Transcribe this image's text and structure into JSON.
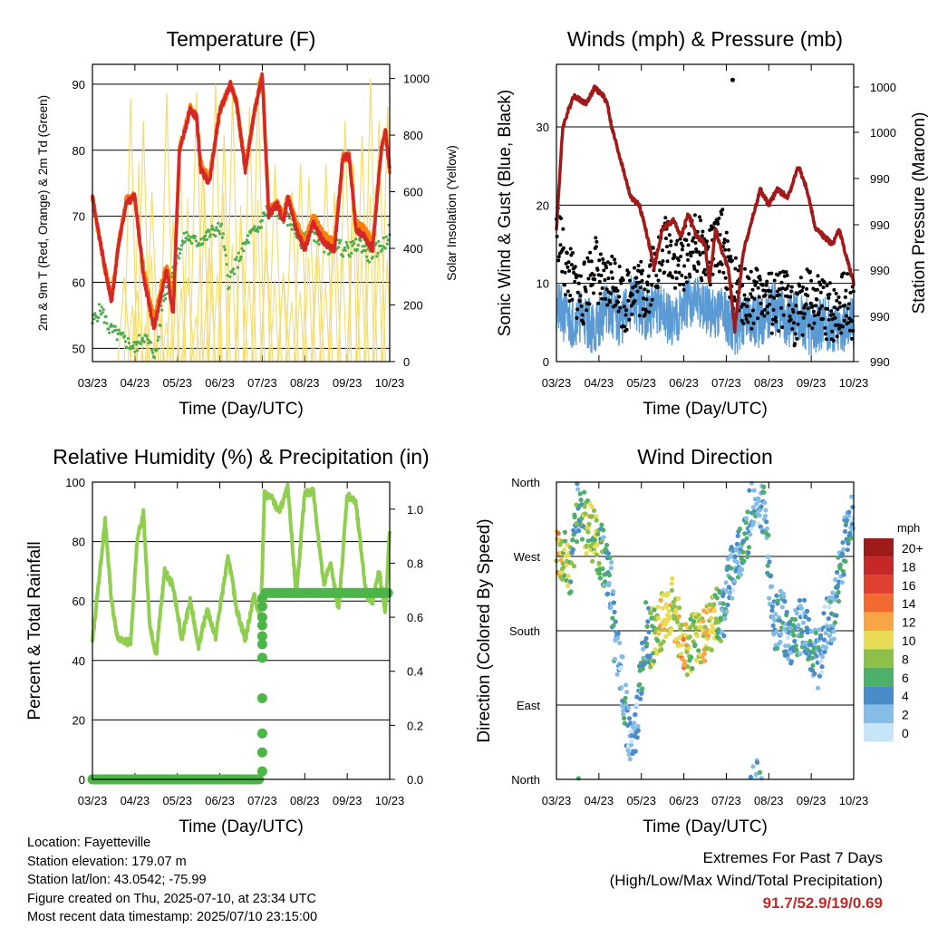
{
  "info": {
    "location": "Location: Fayetteville",
    "elevation": "Station elevation: 179.07 m",
    "latlon": "Station lat/lon: 43.0542; -75.99",
    "created": "Figure created on Thu, 2025-07-10, at 23:34 UTC",
    "recent": "Most recent data timestamp: 2025/07/10 23:15:00"
  },
  "extremes": {
    "title": "Extremes For Past 7 Days",
    "subtitle": "(High/Low/Max Wind/Total Precipitation)",
    "values": "91.7/52.9/19/0.69",
    "value_color": "#c62828"
  },
  "chart_data": [
    {
      "type": "line",
      "title": "Temperature (F)",
      "xlabel": "Time (Day/UTC)",
      "ylabel": "2m & 9m T (Red, Orange) & 2m Td (Green)",
      "y2label": "Solar Insolation (Yellow)",
      "x_ticks": [
        "03/23",
        "04/23",
        "05/23",
        "06/23",
        "07/23",
        "08/23",
        "09/23",
        "10/23"
      ],
      "ylim": [
        48,
        93
      ],
      "yticks": [
        50,
        60,
        70,
        80,
        90
      ],
      "y2lim": [
        0,
        1050
      ],
      "y2ticks": [
        0,
        200,
        400,
        600,
        800,
        1000
      ],
      "colors": {
        "t2m": "#d62728",
        "t9m": "#ff7f0e",
        "td": "#4cae4c",
        "solar": "#f5dc6e"
      },
      "series": [
        {
          "key": "t9m",
          "x": [
            0,
            0.1,
            0.3,
            0.45,
            0.62,
            0.8,
            1.0,
            1.2,
            1.45,
            1.75,
            1.9,
            2.05,
            2.3,
            2.45,
            2.55,
            2.75,
            3.0,
            3.25,
            3.4,
            3.6,
            3.82,
            4.0,
            4.15,
            4.35,
            4.5,
            4.6,
            4.8,
            5.0,
            5.2,
            5.45,
            5.7,
            5.9,
            6.05,
            6.2,
            6.4,
            6.6,
            6.8,
            6.9,
            7.0
          ],
          "values": [
            73,
            69,
            62,
            57.5,
            66,
            72.5,
            73,
            62,
            54,
            63,
            56,
            80,
            86.5,
            85,
            78,
            75.5,
            86,
            90,
            87,
            77,
            86,
            91.5,
            71,
            72,
            70,
            73,
            69,
            66,
            70,
            67,
            66,
            79,
            79,
            69,
            68,
            66,
            80,
            83,
            77
          ]
        },
        {
          "key": "t2m",
          "x": [
            0,
            0.1,
            0.3,
            0.45,
            0.62,
            0.8,
            1.0,
            1.2,
            1.45,
            1.75,
            1.9,
            2.05,
            2.3,
            2.45,
            2.55,
            2.75,
            3.0,
            3.25,
            3.4,
            3.6,
            3.82,
            4.0,
            4.15,
            4.35,
            4.5,
            4.6,
            4.8,
            5.0,
            5.2,
            5.45,
            5.7,
            5.9,
            6.05,
            6.2,
            6.4,
            6.6,
            6.8,
            6.9,
            7.0
          ],
          "values": [
            73,
            69,
            62,
            57,
            66,
            72,
            73,
            61,
            53,
            62,
            55,
            80,
            86,
            85,
            77,
            75,
            86,
            90,
            87,
            77,
            86,
            91.5,
            70,
            72,
            69,
            73,
            68,
            65,
            69,
            66,
            65,
            79,
            79,
            68,
            67,
            65,
            80,
            83,
            77
          ]
        },
        {
          "key": "td",
          "x": [
            0,
            0.2,
            0.4,
            0.6,
            0.8,
            1.0,
            1.2,
            1.4,
            1.5,
            1.65,
            1.8,
            2.0,
            2.2,
            2.45,
            2.7,
            2.9,
            3.05,
            3.2,
            3.4,
            3.55,
            3.7,
            3.9,
            4.1,
            4.3,
            4.5,
            4.7,
            4.9,
            5.1,
            5.3,
            5.5,
            5.7,
            5.9,
            6.1,
            6.3,
            6.5,
            6.7,
            6.9,
            7.0
          ],
          "values": [
            54,
            56,
            53,
            52,
            51,
            50,
            52,
            50,
            49,
            57,
            60,
            64,
            67,
            66,
            67,
            68,
            68,
            60,
            63,
            65,
            67,
            68,
            71,
            71,
            70,
            69,
            66,
            68,
            67,
            65,
            66,
            65,
            65,
            66,
            64,
            65,
            66,
            68
          ]
        },
        {
          "key": "solar",
          "x": [
            0.75,
            0.9,
            1.05,
            1.2,
            1.4,
            1.55,
            1.75,
            1.9,
            2.05,
            2.25,
            2.45,
            2.6,
            2.75,
            2.9,
            3.1,
            3.3,
            3.5,
            3.7,
            3.9,
            4.1,
            4.3,
            4.5,
            4.7,
            4.9,
            5.1,
            5.3,
            5.5,
            5.7,
            5.95,
            6.15,
            6.35,
            6.55,
            6.75,
            6.95
          ],
          "values": [
            300,
            930,
            250,
            850,
            600,
            200,
            950,
            500,
            800,
            300,
            950,
            700,
            400,
            980,
            800,
            950,
            500,
            900,
            1000,
            400,
            700,
            300,
            600,
            700,
            650,
            450,
            700,
            600,
            850,
            700,
            800,
            1000,
            850,
            900
          ]
        }
      ]
    },
    {
      "type": "line",
      "title": "Winds (mph) & Pressure (mb)",
      "xlabel": "Time (Day/UTC)",
      "ylabel": "Sonic Wind & Gust (Blue, Black)",
      "y2label": "Station Pressure (Maroon)",
      "x_ticks": [
        "03/23",
        "04/23",
        "05/23",
        "06/23",
        "07/23",
        "08/23",
        "09/23",
        "10/23"
      ],
      "ylim": [
        0,
        38
      ],
      "yticks": [
        0,
        10,
        20,
        30
      ],
      "y2ticks": [
        "990",
        "990",
        "990",
        "990",
        "990",
        "1000",
        "1000",
        "1000"
      ],
      "colors": {
        "wind": "#5b9bd5",
        "gust": "#000000",
        "pressure": "#a01a1a"
      },
      "series": [
        {
          "key": "pressure",
          "x": [
            0,
            0.15,
            0.4,
            0.7,
            0.9,
            1.1,
            1.2,
            1.3,
            1.45,
            1.6,
            1.75,
            1.95,
            2.1,
            2.3,
            2.5,
            2.75,
            2.95,
            3.1,
            3.3,
            3.5,
            3.6,
            3.75,
            3.9,
            4.05,
            4.2,
            4.4,
            4.6,
            4.8,
            5.0,
            5.2,
            5.45,
            5.7,
            5.9,
            6.1,
            6.3,
            6.5,
            6.65,
            6.8,
            7.0
          ],
          "values": [
            17,
            30,
            34,
            33,
            35,
            34,
            33,
            30,
            27,
            24,
            21,
            20,
            17,
            12,
            17,
            18,
            16,
            19,
            16,
            15,
            10,
            17,
            14,
            12,
            4,
            14,
            18,
            22,
            20,
            22,
            21,
            25,
            22,
            17,
            16,
            15,
            17,
            14,
            10
          ]
        },
        {
          "key": "wind",
          "x": [
            0,
            0.3,
            0.6,
            0.9,
            1.2,
            1.5,
            1.8,
            2.1,
            2.4,
            2.7,
            3.0,
            3.3,
            3.6,
            3.9,
            4.2,
            4.5,
            4.8,
            5.1,
            5.4,
            5.7,
            6.0,
            6.3,
            6.6,
            6.9
          ],
          "values": [
            7,
            5,
            6,
            4,
            7,
            5,
            8,
            6,
            7,
            5,
            7,
            8,
            6,
            7,
            4,
            6,
            5,
            7,
            5,
            6,
            4,
            5,
            4,
            5
          ]
        },
        {
          "key": "gust",
          "x": [
            0,
            0.2,
            0.4,
            0.6,
            0.9,
            1.1,
            1.4,
            1.6,
            1.8,
            2.1,
            2.3,
            2.6,
            2.9,
            3.1,
            3.3,
            3.6,
            3.9,
            4.1,
            4.3,
            4.6,
            4.9,
            5.1,
            5.4,
            5.6,
            5.9,
            6.2,
            6.5,
            6.8,
            7.0
          ],
          "values": [
            18,
            12,
            10,
            8,
            13,
            9,
            11,
            7,
            10,
            9,
            12,
            15,
            12,
            14,
            15,
            13,
            16,
            10,
            9,
            8,
            9,
            7,
            8,
            6,
            8,
            7,
            6,
            8,
            6
          ]
        }
      ]
    },
    {
      "type": "line",
      "title": "Relative Humidity (%) & Precipitation (in)",
      "xlabel": "Time (Day/UTC)",
      "ylabel": "Percent & Total Rainfall",
      "x_ticks": [
        "03/23",
        "04/23",
        "05/23",
        "06/23",
        "07/23",
        "08/23",
        "09/23",
        "10/23"
      ],
      "ylim": [
        0,
        100
      ],
      "yticks": [
        0,
        20,
        40,
        60,
        80,
        100
      ],
      "y2lim": [
        0,
        1.1
      ],
      "y2ticks": [
        "0.0",
        "0.2",
        "0.4",
        "0.6",
        "0.8",
        "1.0"
      ],
      "colors": {
        "rh": "#8fce4f",
        "precip": "#4cb548"
      },
      "series": [
        {
          "key": "rh",
          "x": [
            0,
            0.1,
            0.3,
            0.45,
            0.6,
            0.9,
            1.05,
            1.2,
            1.35,
            1.5,
            1.7,
            1.9,
            2.1,
            2.3,
            2.5,
            2.7,
            2.9,
            3.05,
            3.2,
            3.4,
            3.6,
            3.8,
            3.95,
            4.0,
            4.05,
            4.2,
            4.4,
            4.6,
            4.8,
            5.0,
            5.2,
            5.45,
            5.6,
            5.8,
            6.0,
            6.2,
            6.45,
            6.6,
            6.75,
            6.9,
            7.0
          ],
          "values": [
            46,
            60,
            87,
            60,
            47,
            46,
            80,
            90,
            52,
            42,
            70,
            65,
            47,
            60,
            45,
            57,
            48,
            62,
            75,
            57,
            47,
            62,
            55,
            70,
            96,
            95,
            90,
            98,
            62,
            96,
            97,
            65,
            73,
            57,
            96,
            93,
            62,
            60,
            70,
            56,
            84
          ]
        },
        {
          "key": "precip",
          "x": [
            0,
            3.95,
            4.0,
            4.05,
            7.0
          ],
          "values": [
            0,
            0,
            0.3,
            0.69,
            0.69
          ]
        }
      ]
    },
    {
      "type": "scatter",
      "title": "Wind Direction",
      "xlabel": "Time (Day/UTC)",
      "ylabel": "Direction (Colored By Speed)",
      "x_ticks": [
        "03/23",
        "04/23",
        "05/23",
        "06/23",
        "07/23",
        "08/23",
        "09/23",
        "10/23"
      ],
      "yticks": [
        "North",
        "East",
        "South",
        "West",
        "North"
      ],
      "ylim": [
        0,
        360
      ],
      "colorbar": {
        "unit": "mph",
        "labels": [
          "20+",
          "18",
          "16",
          "14",
          "12",
          "10",
          "8",
          "6",
          "4",
          "2",
          "0"
        ],
        "colors": [
          "#9e1b1b",
          "#c62828",
          "#e04030",
          "#f26a2f",
          "#f7a545",
          "#e8dc54",
          "#8cc04a",
          "#4caf6a",
          "#4a8cc8",
          "#86bde6",
          "#c6e6f8"
        ]
      },
      "series": [
        {
          "name": "direction",
          "x": [
            0,
            0.05,
            0.1,
            0.3,
            0.35,
            0.5,
            0.65,
            0.7,
            0.8,
            0.85,
            0.9,
            1.0,
            1.1,
            1.3,
            1.35,
            1.4,
            1.55,
            1.6,
            1.7,
            1.8,
            2.1,
            2.2,
            2.3,
            2.5,
            2.6,
            2.75,
            2.9,
            3.0,
            3.1,
            3.3,
            3.5,
            3.6,
            3.7,
            3.8,
            3.9,
            4.0,
            4.1,
            4.3,
            4.5,
            4.6,
            4.7,
            4.9,
            5.1,
            5.3,
            5.45,
            5.6,
            5.8,
            6.0,
            6.15,
            6.35,
            6.5,
            6.7,
            6.9,
            7.0
          ],
          "values": [
            280,
            275,
            270,
            260,
            250,
            330,
            320,
            300,
            310,
            290,
            300,
            280,
            270,
            230,
            180,
            160,
            120,
            90,
            60,
            30,
            180,
            170,
            175,
            195,
            200,
            210,
            180,
            165,
            160,
            170,
            175,
            185,
            195,
            200,
            190,
            230,
            245,
            275,
            300,
            340,
            350,
            330,
            180,
            200,
            170,
            180,
            190,
            160,
            140,
            185,
            190,
            260,
            320,
            300
          ],
          "speeds": [
            10,
            12,
            9,
            8,
            6,
            5,
            7,
            8,
            9,
            6,
            8,
            7,
            5,
            4,
            4,
            3,
            3,
            4,
            3,
            2,
            5,
            6,
            8,
            10,
            11,
            9,
            10,
            12,
            9,
            8,
            11,
            10,
            9,
            6,
            5,
            4,
            3,
            4,
            5,
            3,
            3,
            4,
            3,
            4,
            3,
            4,
            3,
            4,
            3,
            2,
            3,
            4,
            3,
            2
          ]
        }
      ]
    }
  ]
}
